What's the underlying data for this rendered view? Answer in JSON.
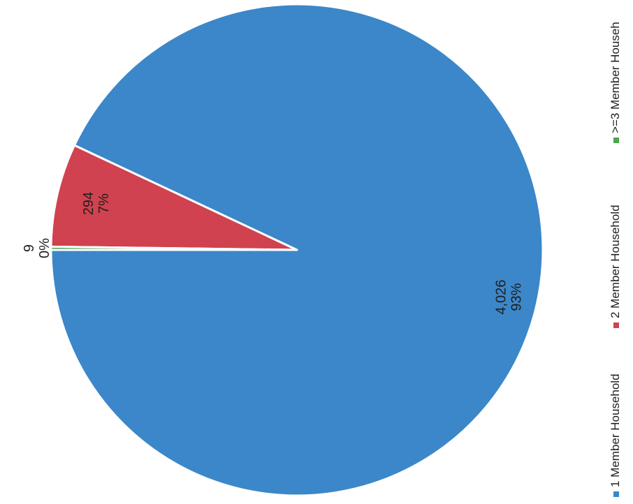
{
  "chart_data": {
    "type": "pie",
    "orientation": "rotated-90-clockwise",
    "slices": [
      {
        "name": "1 Member Household",
        "value": 4026,
        "value_label": "4,026",
        "percent_label": "93%",
        "color": "#3b87c9"
      },
      {
        "name": "2 Member Household",
        "value": 294,
        "value_label": "294",
        "percent_label": "7%",
        "color": "#d0424f"
      },
      {
        "name": ">=3 Member Househ",
        "value": 9,
        "value_label": "9",
        "percent_label": "0%",
        "color": "#4aa64a"
      }
    ],
    "legend_position": "right"
  }
}
